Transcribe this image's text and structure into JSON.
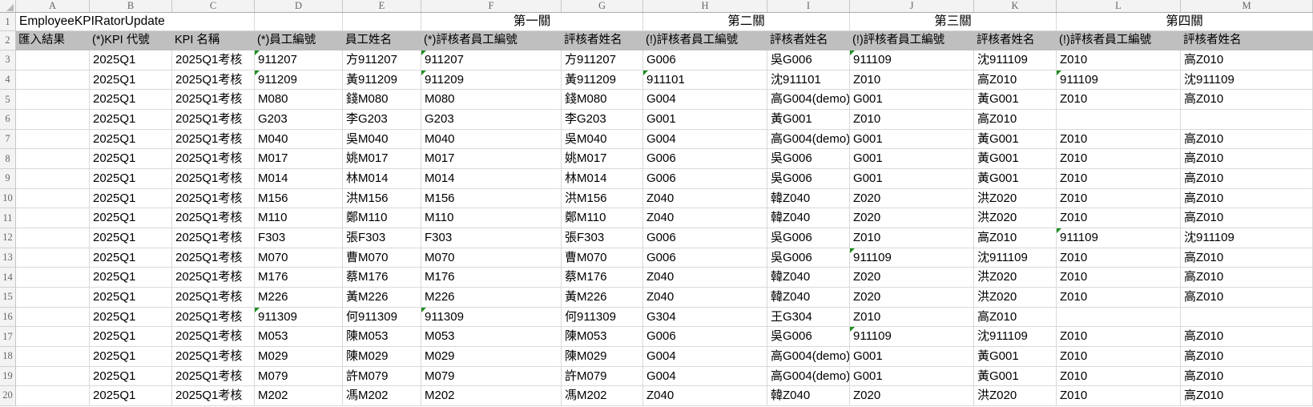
{
  "sheet": {
    "title_cell": "EmployeeKPIRatorUpdate",
    "heading_row_numbers": [
      "1",
      "2"
    ],
    "column_letters": [
      "A",
      "B",
      "C",
      "D",
      "E",
      "F",
      "G",
      "H",
      "I",
      "J",
      "K",
      "L",
      "M"
    ],
    "gates": [
      "第一關",
      "第二關",
      "第三關",
      "第四關"
    ],
    "headers": [
      "匯入結果",
      "(*)KPI 代號",
      "KPI 名稱",
      "(*)員工編號",
      "員工姓名",
      "(*)評核者員工編號",
      "評核者姓名",
      "(!)評核者員工編號",
      "評核者姓名",
      "(!)評核者員工編號",
      "評核者姓名",
      "(!)評核者員工編號",
      "評核者姓名"
    ],
    "colors": {
      "header_fill": "#bfbfbf",
      "gridline": "#d9d9d9",
      "heading_background": "#f3f3f3",
      "indicator_green": "#1e8e1e"
    },
    "rows": [
      {
        "n": "3",
        "cells": [
          "",
          "2025Q1",
          "2025Q1考核",
          "911207",
          "方911207",
          "911207",
          "方911207",
          "G006",
          "吳G006",
          "911109",
          "沈911109",
          "Z010",
          "高Z010"
        ],
        "flags": [
          3,
          5,
          9
        ]
      },
      {
        "n": "4",
        "cells": [
          "",
          "2025Q1",
          "2025Q1考核",
          "911209",
          "黃911209",
          "911209",
          "黃911209",
          "911101",
          "沈911101",
          "Z010",
          "高Z010",
          "911109",
          "沈911109"
        ],
        "flags": [
          3,
          5,
          7,
          11
        ]
      },
      {
        "n": "5",
        "cells": [
          "",
          "2025Q1",
          "2025Q1考核",
          "M080",
          "錢M080",
          "M080",
          "錢M080",
          "G004",
          "高G004(demo)",
          "G001",
          "黃G001",
          "Z010",
          "高Z010"
        ],
        "flags": []
      },
      {
        "n": "6",
        "cells": [
          "",
          "2025Q1",
          "2025Q1考核",
          "G203",
          "李G203",
          "G203",
          "李G203",
          "G001",
          "黃G001",
          "Z010",
          "高Z010",
          "",
          ""
        ],
        "flags": []
      },
      {
        "n": "7",
        "cells": [
          "",
          "2025Q1",
          "2025Q1考核",
          "M040",
          "吳M040",
          "M040",
          "吳M040",
          "G004",
          "高G004(demo)",
          "G001",
          "黃G001",
          "Z010",
          "高Z010"
        ],
        "flags": []
      },
      {
        "n": "8",
        "cells": [
          "",
          "2025Q1",
          "2025Q1考核",
          "M017",
          "姚M017",
          "M017",
          "姚M017",
          "G006",
          "吳G006",
          "G001",
          "黃G001",
          "Z010",
          "高Z010"
        ],
        "flags": []
      },
      {
        "n": "9",
        "cells": [
          "",
          "2025Q1",
          "2025Q1考核",
          "M014",
          "林M014",
          "M014",
          "林M014",
          "G006",
          "吳G006",
          "G001",
          "黃G001",
          "Z010",
          "高Z010"
        ],
        "flags": []
      },
      {
        "n": "10",
        "cells": [
          "",
          "2025Q1",
          "2025Q1考核",
          "M156",
          "洪M156",
          "M156",
          "洪M156",
          "Z040",
          "韓Z040",
          "Z020",
          "洪Z020",
          "Z010",
          "高Z010"
        ],
        "flags": []
      },
      {
        "n": "11",
        "cells": [
          "",
          "2025Q1",
          "2025Q1考核",
          "M110",
          "鄭M110",
          "M110",
          "鄭M110",
          "Z040",
          "韓Z040",
          "Z020",
          "洪Z020",
          "Z010",
          "高Z010"
        ],
        "flags": []
      },
      {
        "n": "12",
        "cells": [
          "",
          "2025Q1",
          "2025Q1考核",
          "F303",
          "張F303",
          "F303",
          "張F303",
          "G006",
          "吳G006",
          "Z010",
          "高Z010",
          "911109",
          "沈911109"
        ],
        "flags": [
          11
        ]
      },
      {
        "n": "13",
        "cells": [
          "",
          "2025Q1",
          "2025Q1考核",
          "M070",
          "曹M070",
          "M070",
          "曹M070",
          "G006",
          "吳G006",
          "911109",
          "沈911109",
          "Z010",
          "高Z010"
        ],
        "flags": [
          9
        ]
      },
      {
        "n": "14",
        "cells": [
          "",
          "2025Q1",
          "2025Q1考核",
          "M176",
          "蔡M176",
          "M176",
          "蔡M176",
          "Z040",
          "韓Z040",
          "Z020",
          "洪Z020",
          "Z010",
          "高Z010"
        ],
        "flags": []
      },
      {
        "n": "15",
        "cells": [
          "",
          "2025Q1",
          "2025Q1考核",
          "M226",
          "黃M226",
          "M226",
          "黃M226",
          "Z040",
          "韓Z040",
          "Z020",
          "洪Z020",
          "Z010",
          "高Z010"
        ],
        "flags": []
      },
      {
        "n": "16",
        "cells": [
          "",
          "2025Q1",
          "2025Q1考核",
          "911309",
          "何911309",
          "911309",
          "何911309",
          "G304",
          "王G304",
          "Z010",
          "高Z010",
          "",
          ""
        ],
        "flags": [
          3,
          5
        ]
      },
      {
        "n": "17",
        "cells": [
          "",
          "2025Q1",
          "2025Q1考核",
          "M053",
          "陳M053",
          "M053",
          "陳M053",
          "G006",
          "吳G006",
          "911109",
          "沈911109",
          "Z010",
          "高Z010"
        ],
        "flags": [
          9
        ]
      },
      {
        "n": "18",
        "cells": [
          "",
          "2025Q1",
          "2025Q1考核",
          "M029",
          "陳M029",
          "M029",
          "陳M029",
          "G004",
          "高G004(demo)",
          "G001",
          "黃G001",
          "Z010",
          "高Z010"
        ],
        "flags": []
      },
      {
        "n": "19",
        "cells": [
          "",
          "2025Q1",
          "2025Q1考核",
          "M079",
          "許M079",
          "M079",
          "許M079",
          "G004",
          "高G004(demo)",
          "G001",
          "黃G001",
          "Z010",
          "高Z010"
        ],
        "flags": []
      },
      {
        "n": "20",
        "cells": [
          "",
          "2025Q1",
          "2025Q1考核",
          "M202",
          "馮M202",
          "M202",
          "馮M202",
          "Z040",
          "韓Z040",
          "Z020",
          "洪Z020",
          "Z010",
          "高Z010"
        ],
        "flags": []
      }
    ]
  }
}
